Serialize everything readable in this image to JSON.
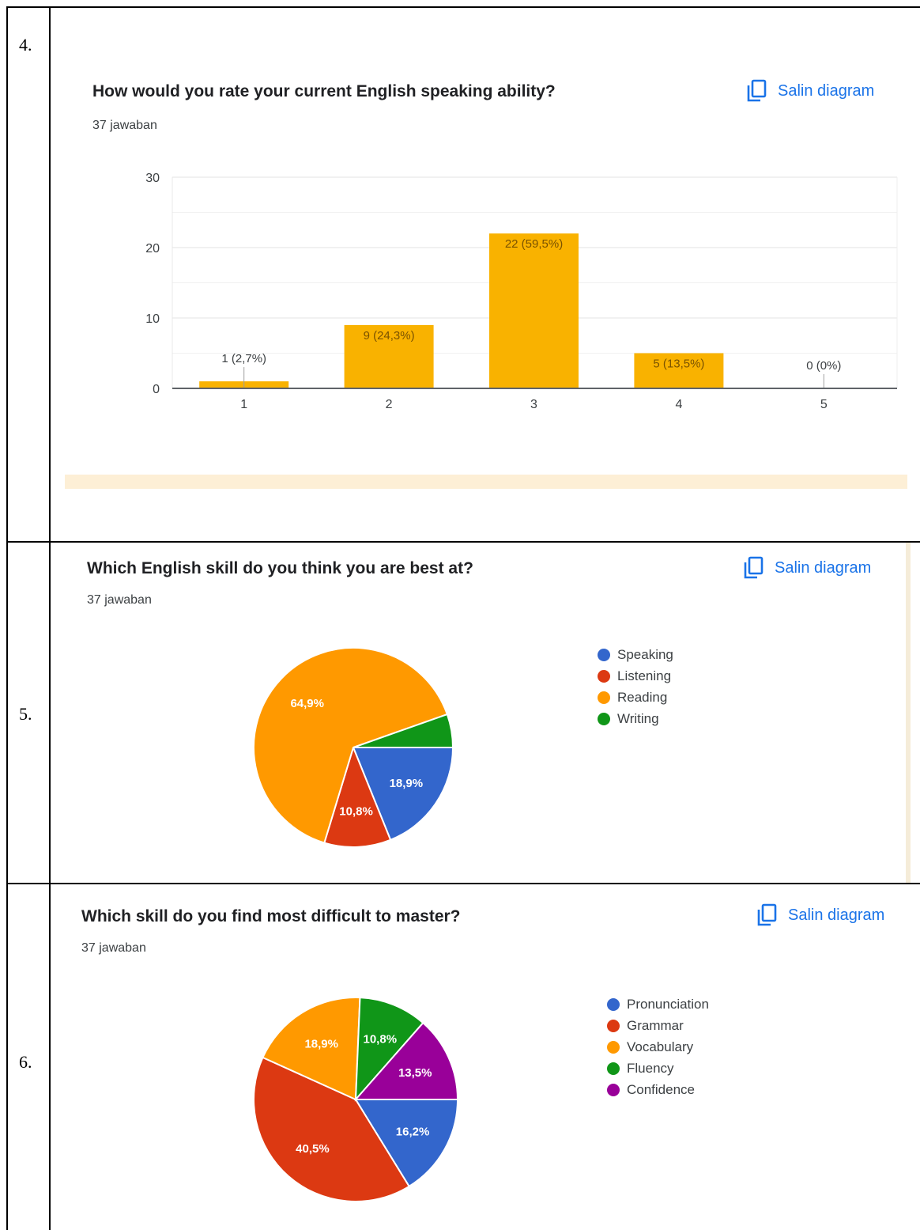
{
  "rows": [
    {
      "number": "4."
    },
    {
      "number": "5."
    },
    {
      "number": "6."
    }
  ],
  "copy_label": "Salin diagram",
  "chart_data": [
    {
      "type": "bar",
      "title": "How would you rate your current English speaking ability?",
      "subtitle": "37 jawaban",
      "categories": [
        "1",
        "2",
        "3",
        "4",
        "5"
      ],
      "values": [
        1,
        9,
        22,
        5,
        0
      ],
      "data_labels": [
        "1 (2,7%)",
        "9 (24,3%)",
        "22 (59,5%)",
        "5 (13,5%)",
        "0 (0%)"
      ],
      "yticks": [
        "0",
        "10",
        "20",
        "30"
      ],
      "ylim": [
        0,
        30
      ],
      "color": "#f9b200",
      "grid": true
    },
    {
      "type": "pie",
      "title": "Which English skill do you think you are best at?",
      "subtitle": "37 jawaban",
      "labels": [
        "Speaking",
        "Listening",
        "Reading",
        "Writing"
      ],
      "values": [
        18.9,
        10.8,
        64.9,
        5.4
      ],
      "slice_labels": [
        "18,9%",
        "10,8%",
        "64,9%",
        ""
      ],
      "colors": [
        "#3366cc",
        "#dc3912",
        "#ff9900",
        "#109618"
      ],
      "legend": "right"
    },
    {
      "type": "pie",
      "title": "Which skill do you find most difficult to master?",
      "subtitle": "37 jawaban",
      "labels": [
        "Pronunciation",
        "Grammar",
        "Vocabulary",
        "Fluency",
        "Confidence"
      ],
      "values": [
        16.2,
        40.5,
        18.9,
        10.8,
        13.5
      ],
      "slice_labels": [
        "16,2%",
        "40,5%",
        "18,9%",
        "10,8%",
        "13,5%"
      ],
      "colors": [
        "#3366cc",
        "#dc3912",
        "#ff9900",
        "#109618",
        "#990099"
      ],
      "legend": "right"
    }
  ]
}
